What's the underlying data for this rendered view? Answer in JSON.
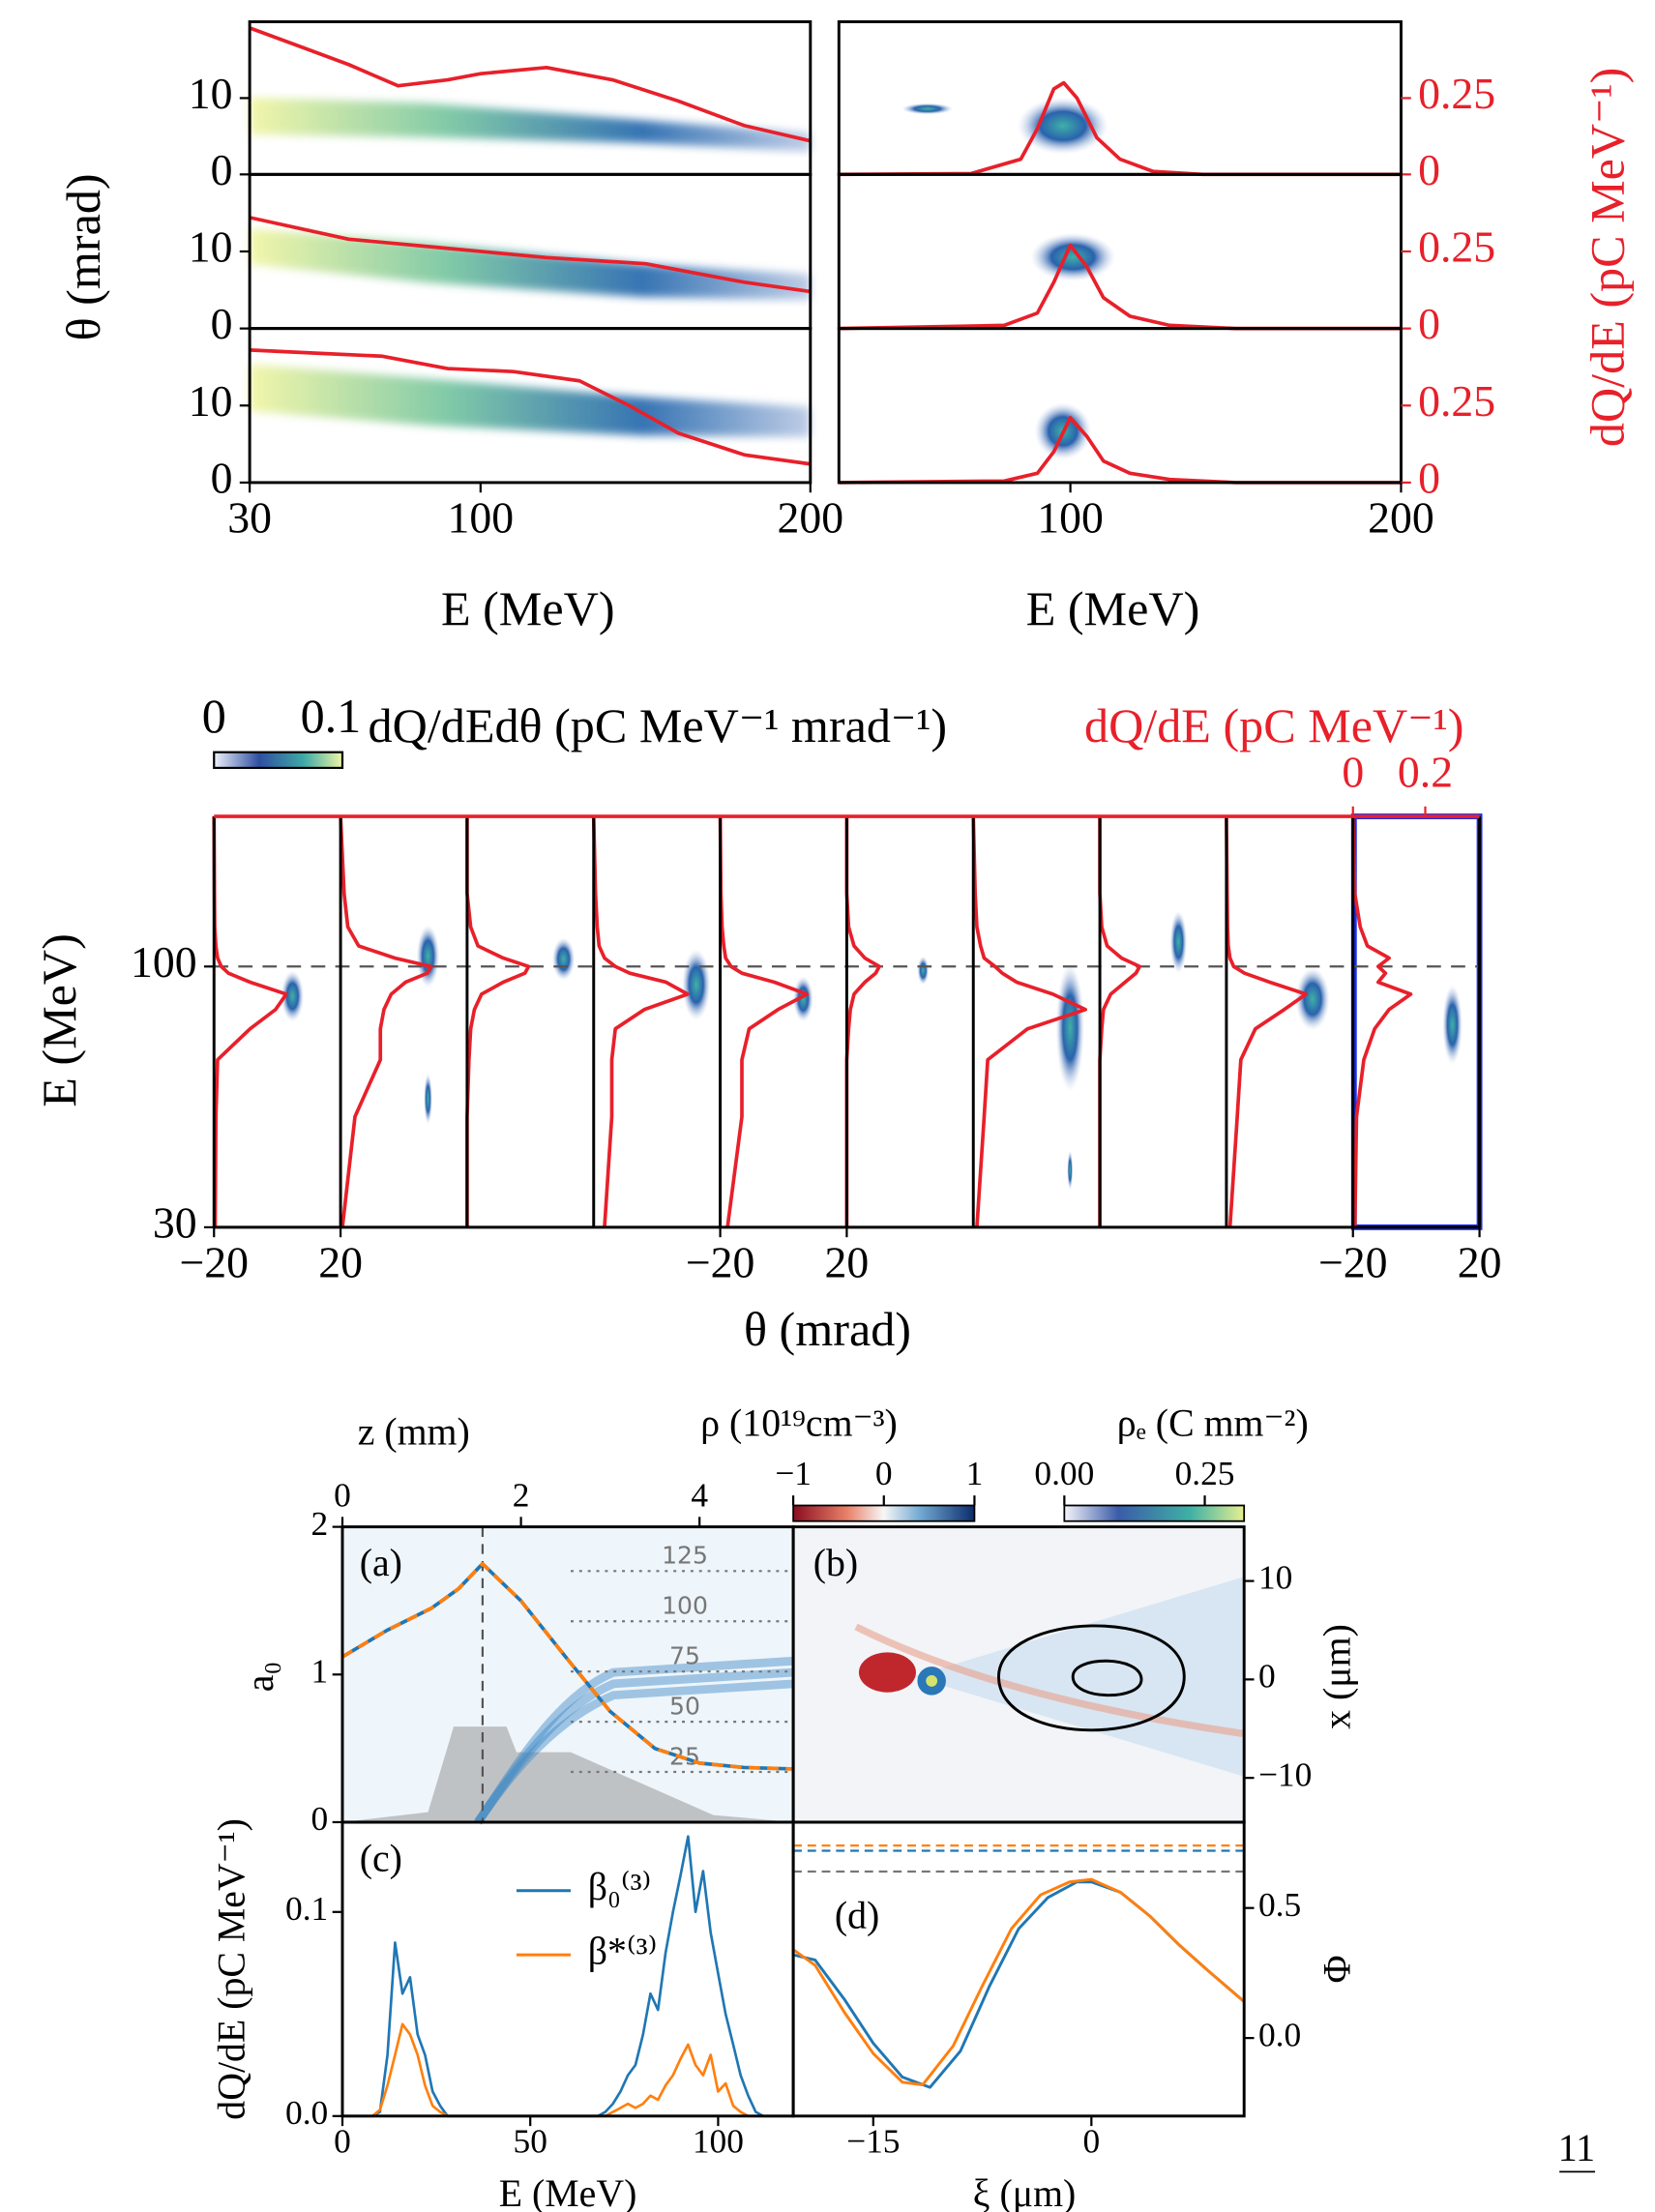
{
  "page_number": "11",
  "chart_data": [
    {
      "type": "heatmap",
      "xlabel": "E (MeV)",
      "ylabel": "θ (mrad)",
      "xlim": [
        30,
        200
      ],
      "xticks": [
        30,
        100,
        200
      ],
      "ylim": [
        0,
        20
      ],
      "yticks": [
        0,
        10
      ],
      "y2lim": [
        0,
        0.5
      ],
      "panels": [
        {
          "series": [
            {
              "color": "#e8202a",
              "axis": "y2",
              "x": [
                30,
                45,
                60,
                75,
                90,
                100,
                120,
                140,
                160,
                180,
                200
              ],
              "values": [
                0.48,
                0.42,
                0.36,
                0.29,
                0.31,
                0.33,
                0.35,
                0.31,
                0.24,
                0.16,
                0.11
              ]
            }
          ]
        },
        {
          "series": [
            {
              "color": "#e8202a",
              "axis": "y2",
              "x": [
                30,
                60,
                90,
                120,
                150,
                180,
                200
              ],
              "values": [
                0.36,
                0.29,
                0.26,
                0.23,
                0.21,
                0.15,
                0.12
              ]
            }
          ]
        },
        {
          "series": [
            {
              "color": "#e8202a",
              "axis": "y2",
              "x": [
                30,
                50,
                70,
                90,
                110,
                130,
                145,
                160,
                180,
                200
              ],
              "values": [
                0.43,
                0.42,
                0.41,
                0.37,
                0.36,
                0.33,
                0.25,
                0.16,
                0.09,
                0.06
              ]
            }
          ]
        }
      ]
    },
    {
      "type": "heatmap",
      "xlabel": "E (MeV)",
      "y2label": "dQ/dE (pC MeV⁻¹)",
      "xlim": [
        30,
        200
      ],
      "xticks": [
        100,
        200
      ],
      "y2lim": [
        0,
        0.5
      ],
      "y2ticks": [
        0,
        0.25
      ],
      "y2color": "#e8202a",
      "panels": [
        {
          "series": [
            {
              "color": "#e8202a",
              "axis": "y2",
              "x": [
                30,
                70,
                85,
                90,
                95,
                98,
                102,
                108,
                115,
                125,
                140,
                200
              ],
              "values": [
                0,
                0.003,
                0.05,
                0.15,
                0.28,
                0.3,
                0.25,
                0.12,
                0.05,
                0.01,
                0,
                0
              ]
            }
          ]
        },
        {
          "series": [
            {
              "color": "#e8202a",
              "axis": "y2",
              "x": [
                30,
                80,
                90,
                95,
                100,
                105,
                110,
                118,
                130,
                150,
                200
              ],
              "values": [
                0,
                0.01,
                0.05,
                0.15,
                0.27,
                0.2,
                0.1,
                0.04,
                0.01,
                0,
                0
              ]
            }
          ]
        },
        {
          "series": [
            {
              "color": "#e8202a",
              "axis": "y2",
              "x": [
                30,
                80,
                90,
                95,
                100,
                105,
                110,
                118,
                130,
                150,
                200
              ],
              "values": [
                0,
                0.005,
                0.03,
                0.1,
                0.21,
                0.15,
                0.07,
                0.03,
                0.01,
                0,
                0
              ]
            }
          ]
        }
      ]
    },
    {
      "type": "heatmap",
      "xlabel": "θ (mrad)",
      "ylabel": "E (MeV)",
      "log_y": true,
      "xlim": [
        -20,
        20
      ],
      "ylim": [
        30,
        200
      ],
      "yticks": [
        30,
        100
      ],
      "x2label": "dQ/dE (pC MeV⁻¹)",
      "x2lim": [
        0,
        0.35
      ],
      "x2ticks": [
        0,
        0.2
      ],
      "x2color": "#e8202a",
      "colorbar": {
        "label": "dQ/dEdθ (pC MeV⁻¹ mrad⁻¹)",
        "lim": [
          0,
          0.11
        ],
        "ticks": [
          0,
          0.1
        ]
      },
      "x": [
        30,
        50,
        65,
        75,
        82,
        88,
        93,
        97,
        100,
        104,
        110,
        120,
        140,
        200
      ],
      "panels": [
        {
          "xticks": [
            {
              "value": -20,
              "label": "−20"
            },
            20
          ],
          "series": [
            {
              "color": "#e8202a",
              "values": [
                0.003,
                0.005,
                0.01,
                0.1,
                0.17,
                0.2,
                0.1,
                0.04,
                0.02,
                0.01,
                0.005,
                0.002,
                0.001,
                0
              ]
            }
          ]
        },
        {
          "series": [
            {
              "color": "#e8202a",
              "values": [
                0.005,
                0.04,
                0.11,
                0.11,
                0.12,
                0.14,
                0.18,
                0.24,
                0.25,
                0.15,
                0.05,
                0.02,
                0.01,
                0
              ]
            }
          ]
        },
        {
          "series": [
            {
              "color": "#e8202a",
              "values": [
                0,
                0,
                0.005,
                0.01,
                0.02,
                0.04,
                0.1,
                0.16,
                0.17,
                0.1,
                0.03,
                0.01,
                0,
                0
              ]
            }
          ]
        },
        {
          "series": [
            {
              "color": "#e8202a",
              "values": [
                0.03,
                0.05,
                0.05,
                0.06,
                0.14,
                0.26,
                0.2,
                0.1,
                0.06,
                0.03,
                0.015,
                0.01,
                0.005,
                0
              ]
            }
          ]
        },
        {
          "xticks": [
            {
              "value": -20,
              "label": "−20"
            },
            20
          ],
          "series": [
            {
              "color": "#e8202a",
              "values": [
                0.02,
                0.06,
                0.06,
                0.08,
                0.16,
                0.24,
                0.15,
                0.06,
                0.03,
                0.015,
                0.01,
                0.005,
                0.002,
                0
              ]
            }
          ]
        },
        {
          "series": [
            {
              "color": "#e8202a",
              "values": [
                0,
                0,
                0,
                0.005,
                0.01,
                0.02,
                0.05,
                0.08,
                0.09,
                0.05,
                0.02,
                0.005,
                0,
                0
              ]
            }
          ]
        },
        {
          "series": [
            {
              "color": "#e8202a",
              "values": [
                0.01,
                0.03,
                0.04,
                0.15,
                0.31,
                0.22,
                0.12,
                0.08,
                0.06,
                0.03,
                0.02,
                0.01,
                0.005,
                0
              ]
            }
          ]
        },
        {
          "series": [
            {
              "color": "#e8202a",
              "values": [
                0,
                0,
                0,
                0.005,
                0.01,
                0.03,
                0.07,
                0.1,
                0.11,
                0.06,
                0.02,
                0.005,
                0,
                0
              ]
            }
          ]
        },
        {
          "series": [
            {
              "color": "#e8202a",
              "values": [
                0.01,
                0.03,
                0.04,
                0.08,
                0.16,
                0.22,
                0.12,
                0.05,
                0.02,
                0.01,
                0.005,
                0.003,
                0.002,
                0
              ]
            }
          ]
        },
        {
          "xticks": [
            {
              "value": -20,
              "label": "−20"
            },
            20
          ],
          "series": [
            {
              "color": "#e8202a",
              "values": [
                0.005,
                0.01,
                0.03,
                0.06,
                0.1,
                0.16,
                0.07,
                0.09,
                0.07,
                0.1,
                0.04,
                0.02,
                0.005,
                0
              ]
            }
          ]
        }
      ]
    },
    {
      "type": "line",
      "panel_label": "(a)",
      "x2label": "z (mm)",
      "ylabel": "a₀",
      "xlim": [
        0,
        5.05
      ],
      "xticks": [
        0,
        2,
        4
      ],
      "ylim": [
        0,
        2
      ],
      "yticks": [
        0,
        1,
        2
      ],
      "y2lim": [
        0,
        147
      ],
      "y2ticks": [
        25,
        50,
        75,
        100,
        125
      ],
      "vline": 1.57,
      "x": [
        0,
        0.5,
        1,
        1.3,
        1.57,
        2,
        2.5,
        3,
        3.5,
        4,
        4.5,
        5.05
      ],
      "series": [
        {
          "color": "#1f77b4",
          "linestyle": "solid",
          "values": [
            1.12,
            1.3,
            1.45,
            1.58,
            1.75,
            1.5,
            1.12,
            0.75,
            0.5,
            0.4,
            0.37,
            0.36
          ]
        },
        {
          "color": "#ff7f0e",
          "linestyle": "dashed",
          "values": [
            1.12,
            1.3,
            1.45,
            1.58,
            1.75,
            1.5,
            1.12,
            0.75,
            0.5,
            0.4,
            0.37,
            0.36
          ]
        }
      ]
    },
    {
      "type": "heatmap",
      "panel_label": "(b)",
      "ylabel": "x (μm)",
      "xlim": [
        -20.5,
        10.5
      ],
      "ylim": [
        -14.5,
        15.5
      ],
      "yticks": [
        {
          "value": -10,
          "label": "−10"
        },
        0,
        10
      ],
      "colorbars": [
        {
          "label": "ρ (10¹⁹cm⁻³)",
          "lim": [
            -1,
            1
          ],
          "ticks": [
            {
              "value": -1,
              "label": "−1"
            },
            0,
            1
          ]
        },
        {
          "label": "ρₑ (C mm⁻²)",
          "lim": [
            0,
            0.32
          ],
          "ticks": [
            {
              "value": 0,
              "label": "0.00"
            },
            0.25
          ]
        }
      ]
    },
    {
      "type": "line",
      "panel_label": "(c)",
      "xlabel": "E (MeV)",
      "ylabel": "dQ/dE (pC MeV⁻¹)",
      "xlim": [
        0,
        120
      ],
      "xticks": [
        0,
        50,
        100
      ],
      "ylim": [
        0,
        0.144
      ],
      "yticks": [
        {
          "value": 0,
          "label": "0.0"
        },
        0.1
      ],
      "x": [
        0,
        2,
        4,
        6,
        8,
        10,
        12,
        14,
        16,
        18,
        20,
        22,
        24,
        26,
        28,
        30,
        32,
        34,
        36,
        38,
        40,
        42,
        44,
        46,
        48,
        50,
        52,
        54,
        56,
        58,
        60,
        62,
        64,
        66,
        68,
        70,
        72,
        74,
        76,
        78,
        80,
        82,
        84,
        86,
        88,
        90,
        92,
        94,
        96,
        98,
        100,
        102,
        104,
        106,
        108,
        110,
        112,
        114,
        116,
        118,
        120
      ],
      "series": [
        {
          "name": "β₀⁽³⁾",
          "color": "#1f77b4",
          "values": [
            0,
            0,
            0,
            0,
            0,
            0.002,
            0.03,
            0.085,
            0.06,
            0.068,
            0.04,
            0.03,
            0.012,
            0.005,
            0,
            0,
            0,
            0,
            0,
            0,
            0,
            0,
            0,
            0,
            0,
            0,
            0,
            0,
            0,
            0,
            0,
            0,
            0,
            0,
            0,
            0.002,
            0.006,
            0.012,
            0.02,
            0.025,
            0.04,
            0.06,
            0.052,
            0.08,
            0.1,
            0.118,
            0.137,
            0.1,
            0.12,
            0.09,
            0.07,
            0.05,
            0.035,
            0.02,
            0.01,
            0.002,
            0,
            0,
            0,
            0,
            0
          ]
        },
        {
          "name": "β*⁽³⁾",
          "color": "#ff7f0e",
          "values": [
            0,
            0,
            0,
            0,
            0,
            0.003,
            0.015,
            0.03,
            0.045,
            0.04,
            0.03,
            0.015,
            0.005,
            0.002,
            0,
            0,
            0,
            0,
            0,
            0,
            0,
            0,
            0,
            0,
            0,
            0,
            0,
            0,
            0,
            0,
            0,
            0,
            0,
            0,
            0,
            0,
            0.002,
            0.004,
            0.006,
            0.004,
            0.006,
            0.01,
            0.008,
            0.015,
            0.02,
            0.028,
            0.035,
            0.025,
            0.02,
            0.03,
            0.012,
            0.016,
            0.005,
            0.002,
            0,
            0,
            0,
            0,
            0,
            0,
            0
          ]
        }
      ]
    },
    {
      "type": "line",
      "panel_label": "(d)",
      "xlabel": "ξ (μm)",
      "ylabel": "Φ",
      "xlim": [
        -20.5,
        10.5
      ],
      "xticks": [
        {
          "value": -15,
          "label": "−15"
        },
        0
      ],
      "ylim": [
        -0.3,
        0.83
      ],
      "yticks": [
        {
          "value": 0,
          "label": "0.0"
        },
        0.5
      ],
      "hlines": [
        {
          "color": "#ff7f0e",
          "value": 0.74
        },
        {
          "color": "#1f77b4",
          "value": 0.72
        },
        {
          "color": "#777777",
          "value": 0.64
        }
      ],
      "series": [
        {
          "color": "#1f77b4",
          "x": [
            -20.5,
            -19,
            -17,
            -15,
            -13,
            -11.1,
            -9,
            -7,
            -5,
            -3,
            -1,
            0,
            2,
            4,
            6,
            8,
            10.5
          ],
          "values": [
            0.32,
            0.3,
            0.15,
            -0.02,
            -0.15,
            -0.19,
            -0.05,
            0.2,
            0.42,
            0.54,
            0.6,
            0.6,
            0.56,
            0.47,
            0.36,
            0.26,
            0.14
          ]
        },
        {
          "color": "#ff7f0e",
          "x": [
            -20.5,
            -19,
            -17,
            -15,
            -13,
            -11.6,
            -9.5,
            -7.5,
            -5.5,
            -3.5,
            -1.5,
            0,
            2,
            4,
            6,
            8,
            10.5
          ],
          "values": [
            0.34,
            0.28,
            0.1,
            -0.06,
            -0.17,
            -0.18,
            -0.03,
            0.2,
            0.42,
            0.55,
            0.6,
            0.61,
            0.56,
            0.47,
            0.36,
            0.26,
            0.14
          ]
        }
      ]
    }
  ]
}
